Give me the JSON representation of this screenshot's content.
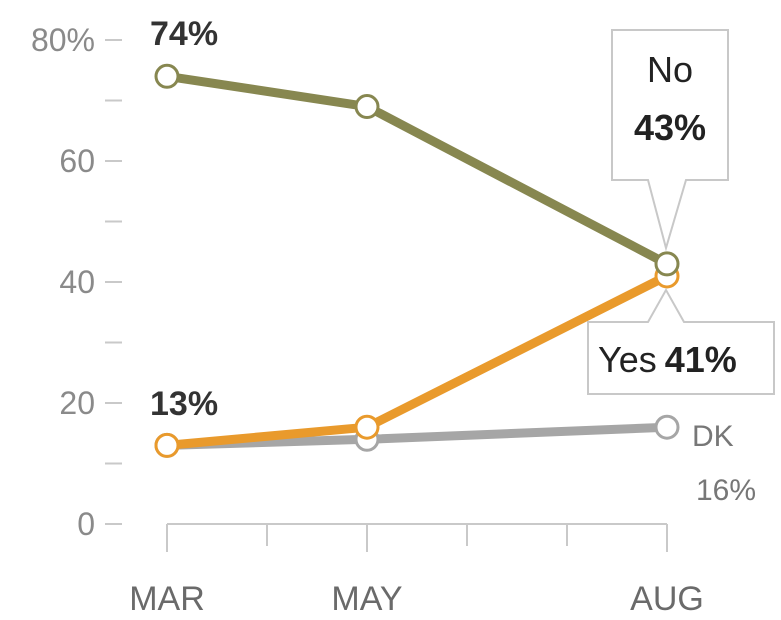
{
  "chart_data": {
    "type": "line",
    "categories": [
      "MAR",
      "MAY",
      "AUG"
    ],
    "ylim": [
      0,
      80
    ],
    "yticks": [
      0,
      20,
      40,
      60,
      80
    ],
    "ytick_labels": [
      "0",
      "20",
      "40",
      "60",
      "80%"
    ],
    "series": [
      {
        "name": "No",
        "values": [
          74,
          69,
          43
        ],
        "color": "#878750"
      },
      {
        "name": "Yes",
        "values": [
          13,
          16,
          41
        ],
        "color": "#e99a2c"
      },
      {
        "name": "DK",
        "values": [
          13,
          14,
          16
        ],
        "color": "#a6a6a6"
      }
    ],
    "annotations": {
      "no_start": "74%",
      "yes_start": "13%",
      "no_box_name": "No",
      "no_box_value": "43%",
      "yes_box_name": "Yes",
      "yes_box_value": "41%",
      "dk_name": "DK",
      "dk_value": "16%"
    }
  }
}
